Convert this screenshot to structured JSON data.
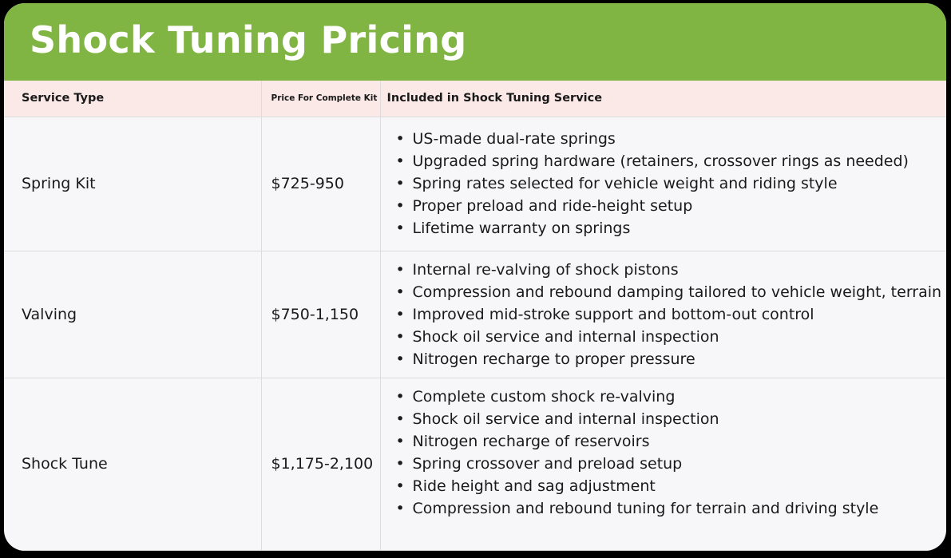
{
  "title": "Shock Tuning Pricing",
  "table": {
    "headers": [
      "Service Type",
      "Price For Complete Kit",
      "Included in Shock Tuning Service"
    ],
    "rows": [
      {
        "service": "Spring Kit",
        "price": "$725-950",
        "features": [
          "US-made dual-rate springs",
          "Upgraded spring hardware (retainers, crossover rings as needed)",
          "Spring rates selected for vehicle weight and riding style",
          "Proper preload and ride-height setup",
          "Lifetime warranty on springs"
        ]
      },
      {
        "service": "Valving",
        "price": "$750-1,150",
        "features": [
          "Internal re-valving of shock pistons",
          "Compression and rebound damping tailored to vehicle weight, terrain",
          "Improved mid-stroke support and bottom-out control",
          "Shock oil service and internal inspection",
          "Nitrogen recharge to proper pressure"
        ]
      },
      {
        "service": "Shock Tune",
        "price": "$1,175-2,100",
        "features": [
          "Complete custom shock re-valving",
          "Shock oil service and internal inspection",
          "Nitrogen recharge of reservoirs",
          "Spring crossover and preload setup",
          "Ride height and sag adjustment",
          "Compression and rebound tuning for terrain and driving style"
        ]
      }
    ]
  },
  "colors": {
    "header_bar": "#80b443",
    "table_header_bg": "#fbe9e8",
    "body_bg": "#f7f6f8",
    "frame": "#000000"
  }
}
